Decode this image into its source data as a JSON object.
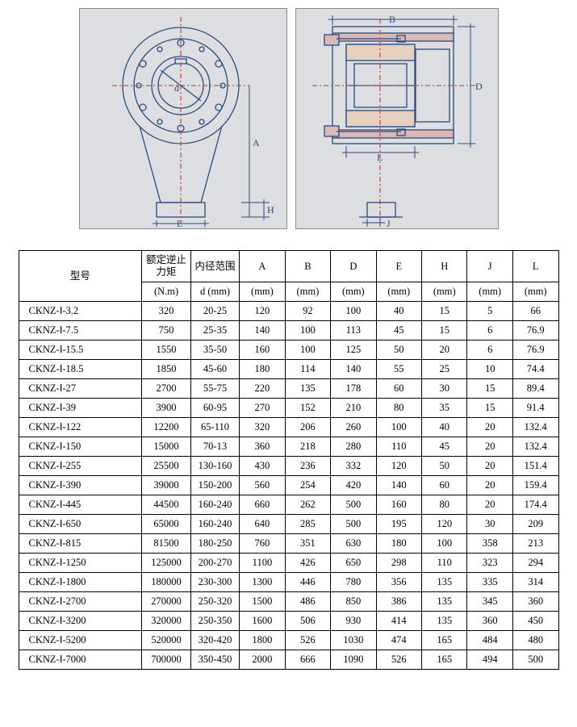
{
  "diagram": {
    "bg_color": "#dddee2",
    "line_color": "#2a4a7a",
    "hatch_color": "#c99",
    "labels_front": [
      "d",
      "A",
      "E",
      "H"
    ],
    "labels_side": [
      "B",
      "L",
      "D",
      "J"
    ]
  },
  "table": {
    "headers": {
      "model": "型号",
      "torque_label": "额定逆止力矩",
      "torque_unit": "(N.m)",
      "bore_label": "内径范围",
      "bore_unit": "d (mm)",
      "A": "A",
      "B": "B",
      "D": "D",
      "E": "E",
      "H": "H",
      "J": "J",
      "L": "L",
      "unit": "(mm)"
    },
    "rows": [
      {
        "m": "CKNZ-Ⅰ-3.2",
        "t": "320",
        "d": "20-25",
        "A": "120",
        "B": "92",
        "D": "100",
        "E": "40",
        "H": "15",
        "J": "5",
        "L": "66"
      },
      {
        "m": "CKNZ-Ⅰ-7.5",
        "t": "750",
        "d": "25-35",
        "A": "140",
        "B": "100",
        "D": "113",
        "E": "45",
        "H": "15",
        "J": "6",
        "L": "76.9"
      },
      {
        "m": "CKNZ-Ⅰ-15.5",
        "t": "1550",
        "d": "35-50",
        "A": "160",
        "B": "100",
        "D": "125",
        "E": "50",
        "H": "20",
        "J": "6",
        "L": "76.9"
      },
      {
        "m": "CKNZ-Ⅰ-18.5",
        "t": "1850",
        "d": "45-60",
        "A": "180",
        "B": "114",
        "D": "140",
        "E": "55",
        "H": "25",
        "J": "10",
        "L": "74.4"
      },
      {
        "m": "CKNZ-Ⅰ-27",
        "t": "2700",
        "d": "55-75",
        "A": "220",
        "B": "135",
        "D": "178",
        "E": "60",
        "H": "30",
        "J": "15",
        "L": "89.4"
      },
      {
        "m": "CKNZ-Ⅰ-39",
        "t": "3900",
        "d": "60-95",
        "A": "270",
        "B": "152",
        "D": "210",
        "E": "80",
        "H": "35",
        "J": "15",
        "L": "91.4"
      },
      {
        "m": "CKNZ-Ⅰ-122",
        "t": "12200",
        "d": "65-110",
        "A": "320",
        "B": "206",
        "D": "260",
        "E": "100",
        "H": "40",
        "J": "20",
        "L": "132.4"
      },
      {
        "m": "CKNZ-Ⅰ-150",
        "t": "15000",
        "d": "70-13",
        "A": "360",
        "B": "218",
        "D": "280",
        "E": "110",
        "H": "45",
        "J": "20",
        "L": "132.4"
      },
      {
        "m": "CKNZ-Ⅰ-255",
        "t": "25500",
        "d": "130-160",
        "A": "430",
        "B": "236",
        "D": "332",
        "E": "120",
        "H": "50",
        "J": "20",
        "L": "151.4"
      },
      {
        "m": "CKNZ-Ⅰ-390",
        "t": "39000",
        "d": "150-200",
        "A": "560",
        "B": "254",
        "D": "420",
        "E": "140",
        "H": "60",
        "J": "20",
        "L": "159.4"
      },
      {
        "m": "CKNZ-Ⅰ-445",
        "t": "44500",
        "d": "160-240",
        "A": "660",
        "B": "262",
        "D": "500",
        "E": "160",
        "H": "80",
        "J": "20",
        "L": "174.4"
      },
      {
        "m": "CKNZ-Ⅰ-650",
        "t": "65000",
        "d": "160-240",
        "A": "640",
        "B": "285",
        "D": "500",
        "E": "195",
        "H": "120",
        "J": "30",
        "L": "209"
      },
      {
        "m": "CKNZ-Ⅰ-815",
        "t": "81500",
        "d": "180-250",
        "A": "760",
        "B": "351",
        "D": "630",
        "E": "180",
        "H": "100",
        "J": "358",
        "L": "213"
      },
      {
        "m": "CKNZ-Ⅰ-1250",
        "t": "125000",
        "d": "200-270",
        "A": "1100",
        "B": "426",
        "D": "650",
        "E": "298",
        "H": "110",
        "J": "323",
        "L": "294"
      },
      {
        "m": "CKNZ-Ⅰ-1800",
        "t": "180000",
        "d": "230-300",
        "A": "1300",
        "B": "446",
        "D": "780",
        "E": "356",
        "H": "135",
        "J": "335",
        "L": "314"
      },
      {
        "m": "CKNZ-Ⅰ-2700",
        "t": "270000",
        "d": "250-320",
        "A": "1500",
        "B": "486",
        "D": "850",
        "E": "386",
        "H": "135",
        "J": "345",
        "L": "360"
      },
      {
        "m": "CKNZ-Ⅰ-3200",
        "t": "320000",
        "d": "250-350",
        "A": "1600",
        "B": "506",
        "D": "930",
        "E": "414",
        "H": "135",
        "J": "360",
        "L": "450"
      },
      {
        "m": "CKNZ-Ⅰ-5200",
        "t": "520000",
        "d": "320-420",
        "A": "1800",
        "B": "526",
        "D": "1030",
        "E": "474",
        "H": "165",
        "J": "484",
        "L": "480"
      },
      {
        "m": "CKNZ-Ⅰ-7000",
        "t": "700000",
        "d": "350-450",
        "A": "2000",
        "B": "666",
        "D": "1090",
        "E": "526",
        "H": "165",
        "J": "494",
        "L": "500"
      }
    ]
  }
}
